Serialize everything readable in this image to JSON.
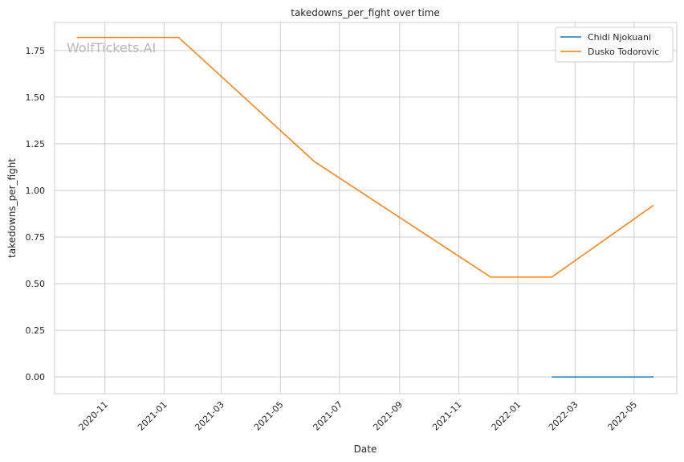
{
  "chart_data": {
    "type": "line",
    "title": "takedowns_per_fight over time",
    "xlabel": "Date",
    "ylabel": "takedowns_per_fight",
    "watermark": "WolfTickets.AI",
    "x_ticks": [
      "2020-11",
      "2021-01",
      "2021-03",
      "2021-05",
      "2021-07",
      "2021-09",
      "2021-11",
      "2022-01",
      "2022-03",
      "2022-05"
    ],
    "y_ticks": [
      "0.00",
      "0.25",
      "0.50",
      "0.75",
      "1.00",
      "1.25",
      "1.50",
      "1.75"
    ],
    "xlim": [
      "2020-09-10",
      "2022-06-14"
    ],
    "ylim": [
      -0.09,
      1.9
    ],
    "grid": true,
    "legend_position": "top-right",
    "series": [
      {
        "name": "Chidi Njokuani",
        "color": "#1f77b4",
        "points": [
          {
            "x": "2022-02-05",
            "y": 0.0
          },
          {
            "x": "2022-05-21",
            "y": 0.0
          }
        ]
      },
      {
        "name": "Dusko Todorovic",
        "color": "#ff7f0e",
        "points": [
          {
            "x": "2020-10-03",
            "y": 1.82
          },
          {
            "x": "2021-01-16",
            "y": 1.82
          },
          {
            "x": "2021-06-05",
            "y": 1.155
          },
          {
            "x": "2021-12-04",
            "y": 0.535
          },
          {
            "x": "2022-02-05",
            "y": 0.535
          },
          {
            "x": "2022-05-21",
            "y": 0.92
          }
        ]
      }
    ]
  }
}
